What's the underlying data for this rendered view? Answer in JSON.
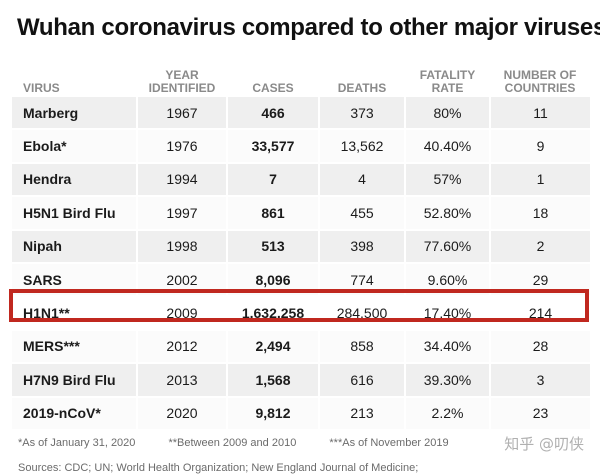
{
  "title": "Wuhan coronavirus compared to other major viruses",
  "chart_data": {
    "type": "table",
    "title": "Wuhan coronavirus compared to other major viruses",
    "columns": [
      "VIRUS",
      "YEAR IDENTIFIED",
      "CASES",
      "DEATHS",
      "FATALITY RATE",
      "NUMBER OF COUNTRIES"
    ],
    "rows": [
      {
        "virus": "Marberg",
        "year": "1967",
        "cases": "466",
        "deaths": "373",
        "fatality_rate": "80%",
        "countries": "11"
      },
      {
        "virus": "Ebola*",
        "year": "1976",
        "cases": "33,577",
        "deaths": "13,562",
        "fatality_rate": "40.40%",
        "countries": "9"
      },
      {
        "virus": "Hendra",
        "year": "1994",
        "cases": "7",
        "deaths": "4",
        "fatality_rate": "57%",
        "countries": "1"
      },
      {
        "virus": "H5N1 Bird Flu",
        "year": "1997",
        "cases": "861",
        "deaths": "455",
        "fatality_rate": "52.80%",
        "countries": "18"
      },
      {
        "virus": "Nipah",
        "year": "1998",
        "cases": "513",
        "deaths": "398",
        "fatality_rate": "77.60%",
        "countries": "2"
      },
      {
        "virus": "SARS",
        "year": "2002",
        "cases": "8,096",
        "deaths": "774",
        "fatality_rate": "9.60%",
        "countries": "29"
      },
      {
        "virus": "H1N1**",
        "year": "2009",
        "cases": "1,632,258",
        "deaths": "284,500",
        "fatality_rate": "17.40%",
        "countries": "214"
      },
      {
        "virus": "MERS***",
        "year": "2012",
        "cases": "2,494",
        "deaths": "858",
        "fatality_rate": "34.40%",
        "countries": "28"
      },
      {
        "virus": "H7N9 Bird Flu",
        "year": "2013",
        "cases": "1,568",
        "deaths": "616",
        "fatality_rate": "39.30%",
        "countries": "3"
      },
      {
        "virus": "2019-nCoV*",
        "year": "2020",
        "cases": "9,812",
        "deaths": "213",
        "fatality_rate": "2.2%",
        "countries": "23"
      }
    ],
    "highlighted_row": "H1N1**",
    "highlight_color": "#c0281f",
    "footnotes": [
      "*As of January 31, 2020",
      "**Between 2009 and 2010",
      "***As of November 2019"
    ],
    "sources": "Sources: CDC; UN; World Health Organization; New England Journal of Medicine;"
  },
  "watermark": "知乎 @叨侠"
}
